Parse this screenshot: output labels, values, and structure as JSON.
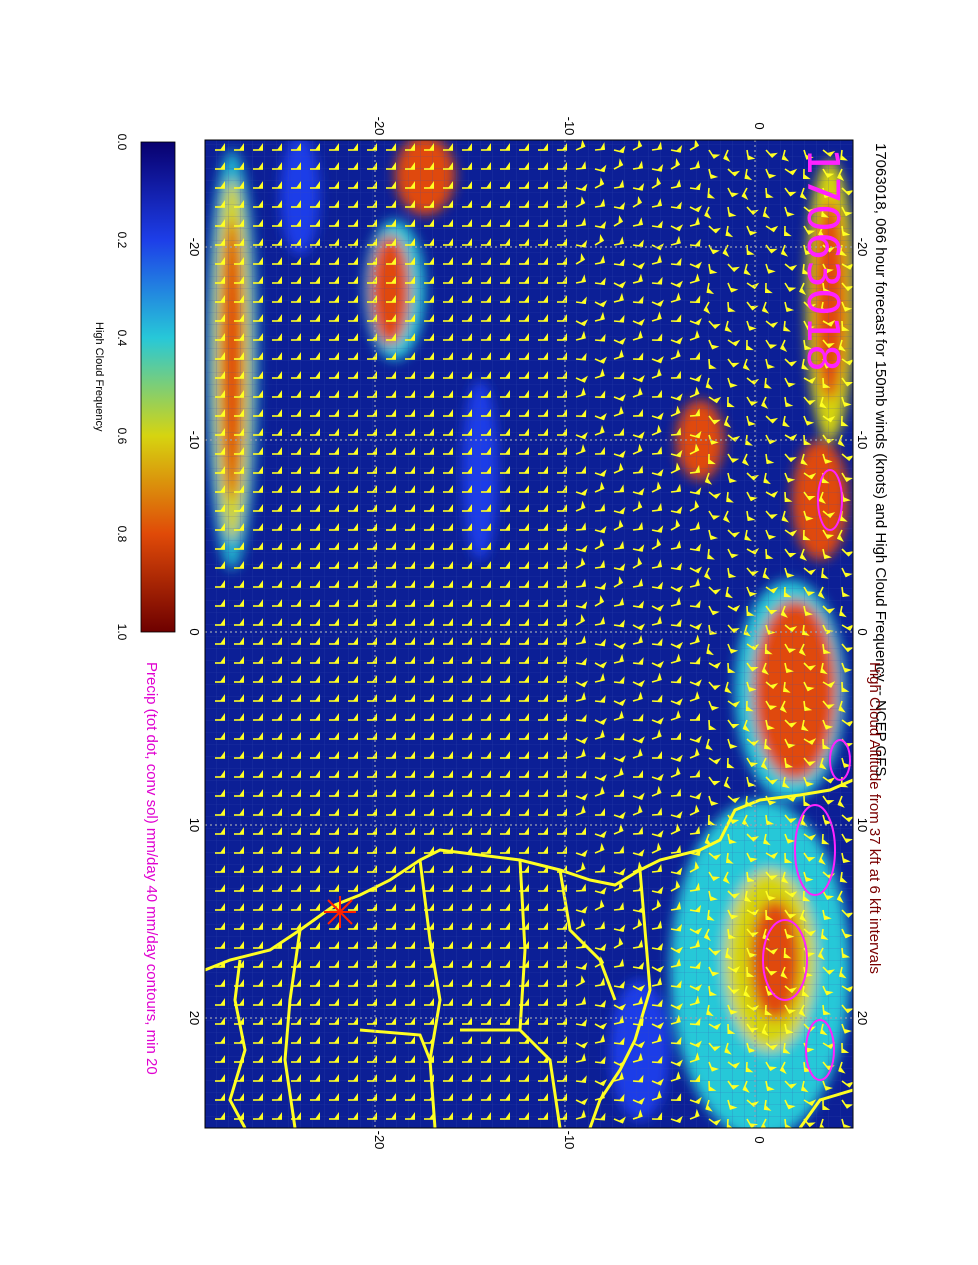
{
  "title": "17063018, 066 hour forecast for 150mb winds (knots) and High Cloud Frequency -- NCEP GFS",
  "stamp": "17063018",
  "caption_line1": "High Cloud Altitude from 37 kft at 6 kft intervals",
  "caption_line2": "Precip (tot dot, conv sol) mm/day 40 mm/day contours, min 20",
  "colorbar": {
    "title": "High Cloud Frequency",
    "ticks": [
      "0.0",
      "0.2",
      "0.4",
      "0.6",
      "0.8",
      "1.0"
    ],
    "colors": [
      "#08006e",
      "#1d3ee8",
      "#27c8d8",
      "#d6d410",
      "#e04a08",
      "#6e0000"
    ]
  },
  "axes": {
    "lat_ticks_top": [
      "-20",
      "-10",
      "0"
    ],
    "lat_ticks_bottom": [
      "-20",
      "-10",
      "0"
    ],
    "lon_ticks_left": [
      "-20",
      "-10",
      "0",
      "10",
      "20"
    ],
    "lon_ticks_right": [
      "-20",
      "-10",
      "0",
      "10",
      "20"
    ]
  },
  "map": {
    "ocean_color": "#0c1f96",
    "barb_color": "#ffff22",
    "coast_color": "#ffff22",
    "precip_contour_color": "#ff22ff",
    "marker_color": "#ff2200"
  }
}
